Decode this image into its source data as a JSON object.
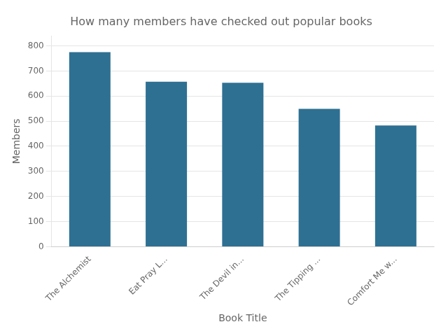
{
  "chart_data": {
    "type": "bar",
    "title": "How many members have checked out popular books",
    "xlabel": "Book Title",
    "ylabel": "Members",
    "categories": [
      "The Alchemist",
      "Eat Pray L...",
      "The Devil in...",
      "The Tipping ...",
      "Comfort Me w..."
    ],
    "values": [
      775,
      657,
      653,
      549,
      483
    ],
    "color": "#2e7092",
    "ylim": [
      0,
      840
    ],
    "yticks": [
      0,
      100,
      200,
      300,
      400,
      500,
      600,
      700,
      800
    ],
    "grid": true
  }
}
